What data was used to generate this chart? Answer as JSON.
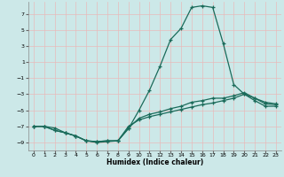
{
  "xlabel": "Humidex (Indice chaleur)",
  "bg_color": "#cce8e8",
  "grid_color": "#e8bbbb",
  "line_color": "#1a6b5a",
  "xlim": [
    -0.5,
    23.5
  ],
  "ylim": [
    -10.0,
    8.5
  ],
  "yticks": [
    7,
    5,
    3,
    1,
    -1,
    -3,
    -5,
    -7,
    -9
  ],
  "xticks": [
    0,
    1,
    2,
    3,
    4,
    5,
    6,
    7,
    8,
    9,
    10,
    11,
    12,
    13,
    14,
    15,
    16,
    17,
    18,
    19,
    20,
    21,
    22,
    23
  ],
  "line1_x": [
    0,
    1,
    2,
    3,
    4,
    5,
    6,
    7,
    8,
    9,
    10,
    11,
    12,
    13,
    14,
    15,
    16,
    17,
    18,
    19,
    20,
    21,
    22,
    23
  ],
  "line1_y": [
    -7.0,
    -7.0,
    -7.2,
    -7.8,
    -8.2,
    -8.8,
    -9.0,
    -8.9,
    -8.8,
    -7.3,
    -5.0,
    -2.5,
    0.5,
    3.8,
    5.2,
    7.8,
    8.0,
    7.8,
    3.3,
    -1.8,
    -3.0,
    -3.5,
    -4.0,
    -4.2
  ],
  "line2_x": [
    0,
    1,
    2,
    3,
    4,
    5,
    6,
    7,
    8,
    9,
    10,
    11,
    12,
    13,
    14,
    15,
    16,
    17,
    18,
    19,
    20,
    21,
    22,
    23
  ],
  "line2_y": [
    -7.0,
    -7.0,
    -7.5,
    -7.8,
    -8.2,
    -8.8,
    -8.9,
    -8.8,
    -8.8,
    -7.2,
    -6.0,
    -5.5,
    -5.2,
    -4.8,
    -4.5,
    -4.0,
    -3.8,
    -3.5,
    -3.5,
    -3.2,
    -2.8,
    -3.5,
    -4.2,
    -4.3
  ],
  "line3_x": [
    0,
    1,
    2,
    3,
    4,
    5,
    6,
    7,
    8,
    9,
    10,
    11,
    12,
    13,
    14,
    15,
    16,
    17,
    18,
    19,
    20,
    21,
    22,
    23
  ],
  "line3_y": [
    -7.0,
    -7.0,
    -7.5,
    -7.8,
    -8.2,
    -8.8,
    -8.9,
    -8.8,
    -8.8,
    -7.0,
    -6.2,
    -5.8,
    -5.5,
    -5.2,
    -4.9,
    -4.6,
    -4.3,
    -4.1,
    -3.8,
    -3.5,
    -3.0,
    -3.8,
    -4.5,
    -4.5
  ]
}
